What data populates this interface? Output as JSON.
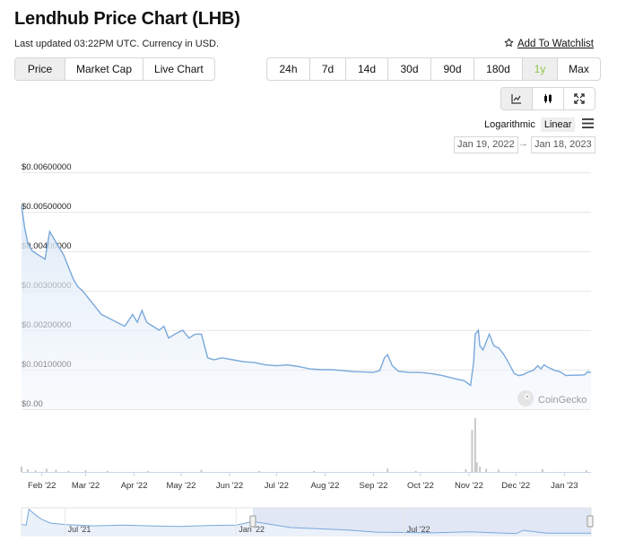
{
  "header": {
    "title": "Lendhub Price Chart (LHB)",
    "updated": "Last updated 03:22PM UTC. Currency in USD.",
    "watchlist_label": "Add To Watchlist"
  },
  "views": [
    {
      "label": "Price",
      "active": true
    },
    {
      "label": "Market Cap",
      "active": false
    },
    {
      "label": "Live Chart",
      "active": false
    }
  ],
  "ranges": [
    {
      "label": "24h",
      "active": false
    },
    {
      "label": "7d",
      "active": false
    },
    {
      "label": "14d",
      "active": false
    },
    {
      "label": "30d",
      "active": false
    },
    {
      "label": "90d",
      "active": false
    },
    {
      "label": "180d",
      "active": false
    },
    {
      "label": "1y",
      "active": true
    },
    {
      "label": "Max",
      "active": false
    }
  ],
  "chart_types": [
    {
      "icon": "line-chart-icon",
      "active": true
    },
    {
      "icon": "candlestick-icon",
      "active": false
    },
    {
      "icon": "fullscreen-icon",
      "active": false
    }
  ],
  "scale": {
    "options": [
      {
        "label": "Logarithmic",
        "active": false
      },
      {
        "label": "Linear",
        "active": true
      }
    ]
  },
  "date_range": {
    "from": "Jan 19, 2022",
    "arrow": "→",
    "to": "Jan 18, 2023"
  },
  "watermark": "CoinGecko",
  "colors": {
    "line": "#79a8db",
    "fill_top": "#dce9f7",
    "active_range": "#8dc647",
    "volume": "#c8c8c8",
    "navigator_mask": "#d7dff0"
  },
  "chart_data": {
    "type": "area",
    "title": "",
    "xlabel": "",
    "ylabel": "",
    "ylim": [
      0,
      0.006
    ],
    "yticks": [
      {
        "label": "$0.00",
        "value": 0
      },
      {
        "label": "$0.00100000",
        "value": 0.001
      },
      {
        "label": "$0.00200000",
        "value": 0.002
      },
      {
        "label": "$0.00300000",
        "value": 0.003
      },
      {
        "label": "$0.00400000",
        "value": 0.004
      },
      {
        "label": "$0.00500000",
        "value": 0.005
      },
      {
        "label": "$0.00600000",
        "value": 0.006
      }
    ],
    "xlim": [
      "2022-01-19",
      "2023-01-18"
    ],
    "xticks": [
      {
        "label": "Feb '22",
        "date": "2022-02-01"
      },
      {
        "label": "Mar '22",
        "date": "2022-03-01"
      },
      {
        "label": "Apr '22",
        "date": "2022-04-01"
      },
      {
        "label": "May '22",
        "date": "2022-05-01"
      },
      {
        "label": "Jun '22",
        "date": "2022-06-01"
      },
      {
        "label": "Jul '22",
        "date": "2022-07-01"
      },
      {
        "label": "Aug '22",
        "date": "2022-08-01"
      },
      {
        "label": "Sep '22",
        "date": "2022-09-01"
      },
      {
        "label": "Oct '22",
        "date": "2022-10-01"
      },
      {
        "label": "Nov '22",
        "date": "2022-11-01"
      },
      {
        "label": "Dec '22",
        "date": "2022-12-01"
      },
      {
        "label": "Jan '23",
        "date": "2023-01-01"
      }
    ],
    "grid": true,
    "legend": "none",
    "series": [
      {
        "points": [
          [
            "2022-01-19",
            0.00515
          ],
          [
            "2022-01-21",
            0.0046
          ],
          [
            "2022-01-23",
            0.0042
          ],
          [
            "2022-01-26",
            0.004
          ],
          [
            "2022-01-30",
            0.0039
          ],
          [
            "2022-02-03",
            0.0038
          ],
          [
            "2022-02-06",
            0.0045
          ],
          [
            "2022-02-09",
            0.0043
          ],
          [
            "2022-02-12",
            0.0041
          ],
          [
            "2022-02-15",
            0.0039
          ],
          [
            "2022-02-18",
            0.0036
          ],
          [
            "2022-02-21",
            0.0033
          ],
          [
            "2022-02-24",
            0.0031
          ],
          [
            "2022-02-27",
            0.003
          ],
          [
            "2022-03-03",
            0.0028
          ],
          [
            "2022-03-07",
            0.0026
          ],
          [
            "2022-03-11",
            0.0024
          ],
          [
            "2022-03-16",
            0.0023
          ],
          [
            "2022-03-21",
            0.0022
          ],
          [
            "2022-03-26",
            0.0021
          ],
          [
            "2022-03-31",
            0.0024
          ],
          [
            "2022-04-03",
            0.0022
          ],
          [
            "2022-04-06",
            0.0025
          ],
          [
            "2022-04-09",
            0.0022
          ],
          [
            "2022-04-13",
            0.0021
          ],
          [
            "2022-04-17",
            0.002
          ],
          [
            "2022-04-20",
            0.0021
          ],
          [
            "2022-04-23",
            0.0018
          ],
          [
            "2022-04-27",
            0.0019
          ],
          [
            "2022-05-02",
            0.002
          ],
          [
            "2022-05-06",
            0.0018
          ],
          [
            "2022-05-10",
            0.0019
          ],
          [
            "2022-05-14",
            0.0019
          ],
          [
            "2022-05-18",
            0.0013
          ],
          [
            "2022-05-22",
            0.00125
          ],
          [
            "2022-05-27",
            0.0013
          ],
          [
            "2022-06-03",
            0.00125
          ],
          [
            "2022-06-10",
            0.0012
          ],
          [
            "2022-06-17",
            0.00118
          ],
          [
            "2022-06-24",
            0.00112
          ],
          [
            "2022-07-01",
            0.0011
          ],
          [
            "2022-07-08",
            0.00112
          ],
          [
            "2022-07-15",
            0.00108
          ],
          [
            "2022-07-22",
            0.00102
          ],
          [
            "2022-07-29",
            0.001
          ],
          [
            "2022-08-05",
            0.001
          ],
          [
            "2022-08-12",
            0.00098
          ],
          [
            "2022-08-19",
            0.00095
          ],
          [
            "2022-08-26",
            0.00094
          ],
          [
            "2022-09-01",
            0.00093
          ],
          [
            "2022-09-05",
            0.00098
          ],
          [
            "2022-09-08",
            0.0013
          ],
          [
            "2022-09-10",
            0.00138
          ],
          [
            "2022-09-13",
            0.0011
          ],
          [
            "2022-09-17",
            0.00096
          ],
          [
            "2022-09-24",
            0.00093
          ],
          [
            "2022-10-01",
            0.00093
          ],
          [
            "2022-10-08",
            0.0009
          ],
          [
            "2022-10-15",
            0.00085
          ],
          [
            "2022-10-22",
            0.00078
          ],
          [
            "2022-10-29",
            0.00072
          ],
          [
            "2022-11-02",
            0.0006
          ],
          [
            "2022-11-04",
            0.0012
          ],
          [
            "2022-11-05",
            0.0019
          ],
          [
            "2022-11-07",
            0.002
          ],
          [
            "2022-11-08",
            0.0016
          ],
          [
            "2022-11-10",
            0.0015
          ],
          [
            "2022-11-12",
            0.0017
          ],
          [
            "2022-11-14",
            0.0019
          ],
          [
            "2022-11-17",
            0.0016
          ],
          [
            "2022-11-20",
            0.00155
          ],
          [
            "2022-11-23",
            0.0014
          ],
          [
            "2022-11-26",
            0.0012
          ],
          [
            "2022-11-30",
            0.0009
          ],
          [
            "2022-12-03",
            0.00085
          ],
          [
            "2022-12-06",
            0.00088
          ],
          [
            "2022-12-09",
            0.00094
          ],
          [
            "2022-12-12",
            0.00098
          ],
          [
            "2022-12-15",
            0.0011
          ],
          [
            "2022-12-17",
            0.00102
          ],
          [
            "2022-12-19",
            0.00112
          ],
          [
            "2022-12-22",
            0.00105
          ],
          [
            "2022-12-26",
            0.00098
          ],
          [
            "2022-12-29",
            0.00095
          ],
          [
            "2023-01-02",
            0.00085
          ],
          [
            "2023-01-06",
            0.00086
          ],
          [
            "2023-01-10",
            0.00086
          ],
          [
            "2023-01-14",
            0.00087
          ],
          [
            "2023-01-16",
            0.00095
          ],
          [
            "2023-01-18",
            0.00092
          ]
        ]
      }
    ],
    "volume": [
      [
        "2022-01-19",
        0.1
      ],
      [
        "2022-01-23",
        0.05
      ],
      [
        "2022-01-28",
        0.03
      ],
      [
        "2022-02-04",
        0.06
      ],
      [
        "2022-02-10",
        0.04
      ],
      [
        "2022-02-18",
        0.02
      ],
      [
        "2022-03-01",
        0.03
      ],
      [
        "2022-03-15",
        0.02
      ],
      [
        "2022-04-10",
        0.02
      ],
      [
        "2022-05-14",
        0.04
      ],
      [
        "2022-06-20",
        0.02
      ],
      [
        "2022-07-25",
        0.02
      ],
      [
        "2022-09-10",
        0.06
      ],
      [
        "2022-09-28",
        0.02
      ],
      [
        "2022-10-30",
        0.05
      ],
      [
        "2022-11-03",
        0.78
      ],
      [
        "2022-11-05",
        1.0
      ],
      [
        "2022-11-06",
        0.18
      ],
      [
        "2022-11-08",
        0.1
      ],
      [
        "2022-11-12",
        0.06
      ],
      [
        "2022-11-20",
        0.04
      ],
      [
        "2022-12-18",
        0.05
      ],
      [
        "2023-01-15",
        0.03
      ]
    ],
    "navigator": {
      "xticks": [
        {
          "label": "Jul '21",
          "date": "2021-07-01"
        },
        {
          "label": "Jan '22",
          "date": "2022-01-01"
        },
        {
          "label": "Jul '22",
          "date": "2022-07-01"
        }
      ],
      "range": [
        "2021-05-15",
        "2023-01-18"
      ],
      "selected": [
        "2022-01-19",
        "2023-01-18"
      ],
      "points": [
        [
          "2021-05-15",
          0.004
        ],
        [
          "2021-05-20",
          0.0038
        ],
        [
          "2021-05-23",
          0.0095
        ],
        [
          "2021-05-28",
          0.008
        ],
        [
          "2021-06-05",
          0.006
        ],
        [
          "2021-06-15",
          0.0045
        ],
        [
          "2021-07-01",
          0.004
        ],
        [
          "2021-08-01",
          0.0035
        ],
        [
          "2021-09-01",
          0.0038
        ],
        [
          "2021-10-01",
          0.0035
        ],
        [
          "2021-11-01",
          0.0033
        ],
        [
          "2021-12-01",
          0.0036
        ],
        [
          "2022-01-01",
          0.0038
        ],
        [
          "2022-01-19",
          0.0051
        ],
        [
          "2022-03-01",
          0.0029
        ],
        [
          "2022-05-01",
          0.002
        ],
        [
          "2022-06-01",
          0.00125
        ],
        [
          "2022-08-01",
          0.001
        ],
        [
          "2022-09-10",
          0.0014
        ],
        [
          "2022-10-29",
          0.0007
        ],
        [
          "2022-11-06",
          0.0019
        ],
        [
          "2022-12-01",
          0.0009
        ],
        [
          "2023-01-18",
          0.0009
        ]
      ]
    }
  }
}
